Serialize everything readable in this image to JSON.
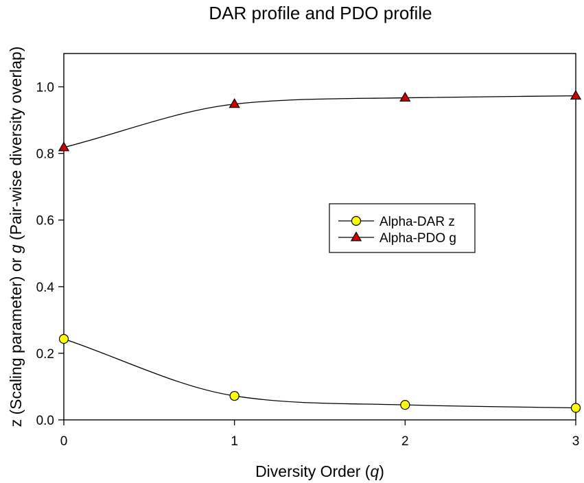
{
  "chart_data": {
    "type": "line",
    "title": "DAR profile and PDO profile",
    "xlabel": {
      "text": "Diversity Order (",
      "var": "q",
      "suffix": ")"
    },
    "ylabel": {
      "p1": "z (Scaling parameter) or ",
      "var": "g",
      "p2": " (Pair-wise diversity overlap)"
    },
    "x": [
      0,
      1,
      2,
      3
    ],
    "xlim": [
      0,
      3
    ],
    "ylim": [
      0,
      1.1
    ],
    "xticks": [
      "0",
      "1",
      "2",
      "3"
    ],
    "yticks": [
      "0.0",
      "0.2",
      "0.4",
      "0.6",
      "0.8",
      "1.0"
    ],
    "grid": false,
    "legend_position": "center-right",
    "series": [
      {
        "name": "Alpha-DAR z",
        "marker": "circle",
        "color": "#ffff00",
        "values": [
          0.243,
          0.072,
          0.045,
          0.036
        ]
      },
      {
        "name": "Alpha-PDO g",
        "marker": "triangle",
        "color": "#cc0000",
        "values": [
          0.818,
          0.948,
          0.967,
          0.973
        ]
      }
    ]
  }
}
